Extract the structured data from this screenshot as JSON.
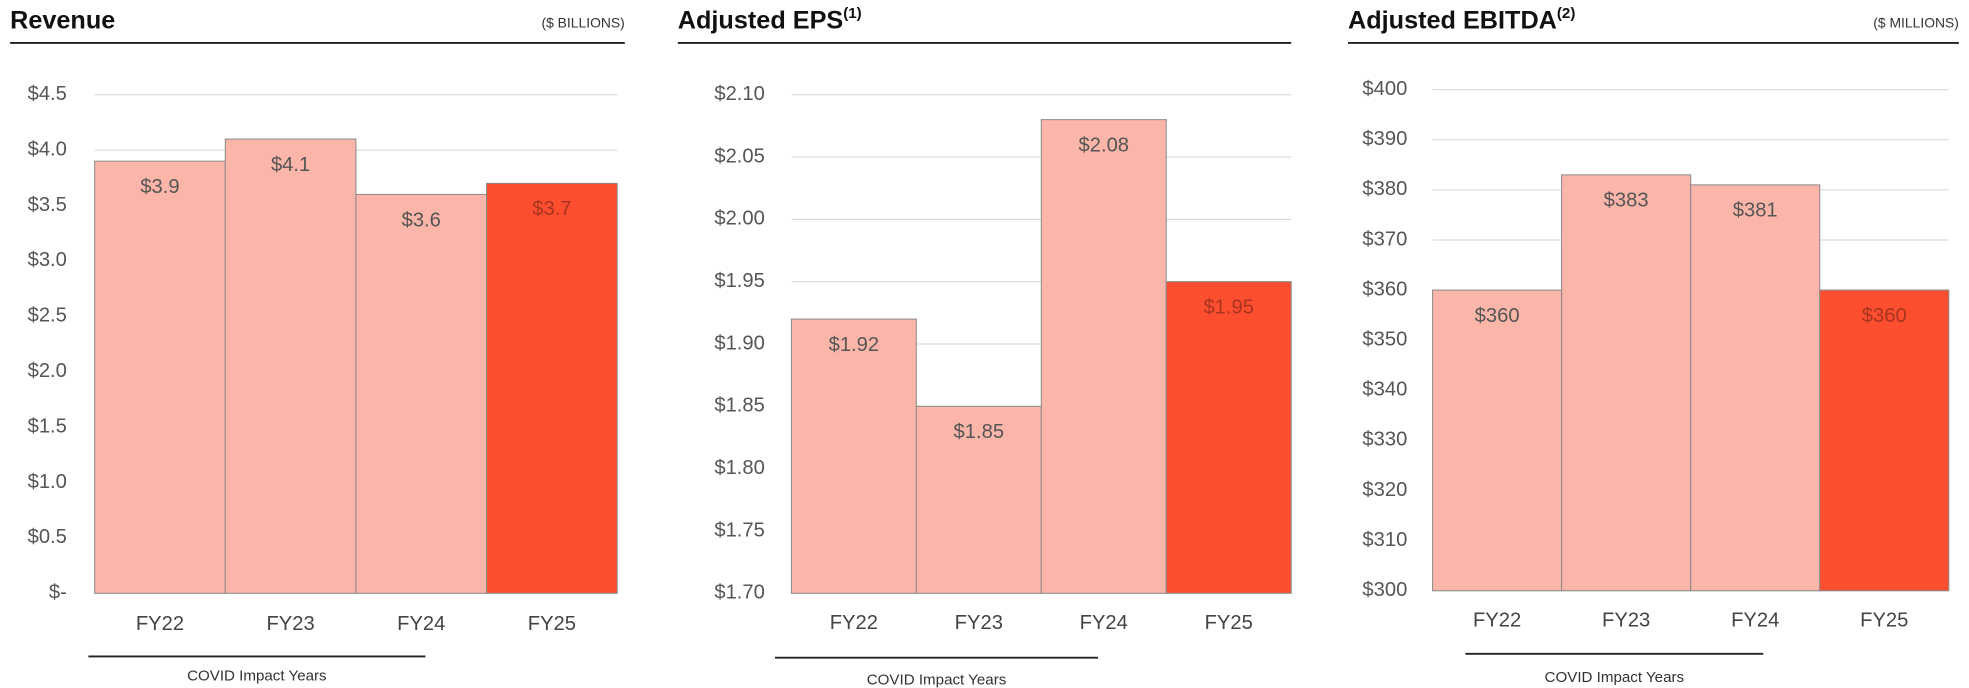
{
  "chart_data": [
    {
      "type": "bar",
      "title": "Revenue",
      "unit": "($ BILLIONS)",
      "categories": [
        "FY22",
        "FY23",
        "FY24",
        "FY25"
      ],
      "values": [
        3.9,
        4.1,
        3.6,
        3.7
      ],
      "value_labels": [
        "$3.9",
        "$4.1",
        "$3.6",
        "$3.7"
      ],
      "colors": [
        "#fbb6a9",
        "#fbb6a9",
        "#fbb6a9",
        "#fd4f30"
      ],
      "ylim": [
        0,
        4.5
      ],
      "yticks": [
        {
          "value": 0,
          "label": "$-"
        },
        {
          "value": 0.5,
          "label": "$0.5"
        },
        {
          "value": 1.0,
          "label": "$1.0"
        },
        {
          "value": 1.5,
          "label": "$1.5"
        },
        {
          "value": 2.0,
          "label": "$2.0"
        },
        {
          "value": 2.5,
          "label": "$2.5"
        },
        {
          "value": 3.0,
          "label": "$3.0"
        },
        {
          "value": 3.5,
          "label": "$3.5"
        },
        {
          "value": 4.0,
          "label": "$4.0"
        },
        {
          "value": 4.5,
          "label": "$4.5"
        }
      ],
      "grid": true,
      "annotation": "COVID Impact Years"
    },
    {
      "type": "bar",
      "title": "Adjusted EPS",
      "footnote": "(1)",
      "categories": [
        "FY22",
        "FY23",
        "FY24",
        "FY25"
      ],
      "values": [
        1.92,
        1.85,
        2.08,
        1.95
      ],
      "value_labels": [
        "$1.92",
        "$1.85",
        "$2.08",
        "$1.95"
      ],
      "colors": [
        "#fbb6a9",
        "#fbb6a9",
        "#fbb6a9",
        "#fd4f30"
      ],
      "ylim": [
        1.7,
        2.1
      ],
      "yticks": [
        {
          "value": 1.7,
          "label": "$1.70"
        },
        {
          "value": 1.75,
          "label": "$1.75"
        },
        {
          "value": 1.8,
          "label": "$1.80"
        },
        {
          "value": 1.85,
          "label": "$1.85"
        },
        {
          "value": 1.9,
          "label": "$1.90"
        },
        {
          "value": 1.95,
          "label": "$1.95"
        },
        {
          "value": 2.0,
          "label": "$2.00"
        },
        {
          "value": 2.05,
          "label": "$2.05"
        },
        {
          "value": 2.1,
          "label": "$2.10"
        }
      ],
      "grid": true,
      "annotation": "COVID Impact Years"
    },
    {
      "type": "bar",
      "title": "Adjusted EBITDA",
      "footnote": "(2)",
      "unit": "($ MILLIONS)",
      "categories": [
        "FY22",
        "FY23",
        "FY24",
        "FY25"
      ],
      "values": [
        360,
        383,
        381,
        360
      ],
      "value_labels": [
        "$360",
        "$383",
        "$381",
        "$360"
      ],
      "colors": [
        "#fbb6a9",
        "#fbb6a9",
        "#fbb6a9",
        "#fd4f30"
      ],
      "ylim": [
        300,
        400
      ],
      "yticks": [
        {
          "value": 300,
          "label": "$300"
        },
        {
          "value": 310,
          "label": "$310"
        },
        {
          "value": 320,
          "label": "$320"
        },
        {
          "value": 330,
          "label": "$330"
        },
        {
          "value": 340,
          "label": "$340"
        },
        {
          "value": 350,
          "label": "$350"
        },
        {
          "value": 360,
          "label": "$360"
        },
        {
          "value": 370,
          "label": "$370"
        },
        {
          "value": 380,
          "label": "$380"
        },
        {
          "value": 390,
          "label": "$390"
        },
        {
          "value": 400,
          "label": "$400"
        }
      ],
      "grid": true,
      "annotation": "COVID Impact Years"
    }
  ]
}
